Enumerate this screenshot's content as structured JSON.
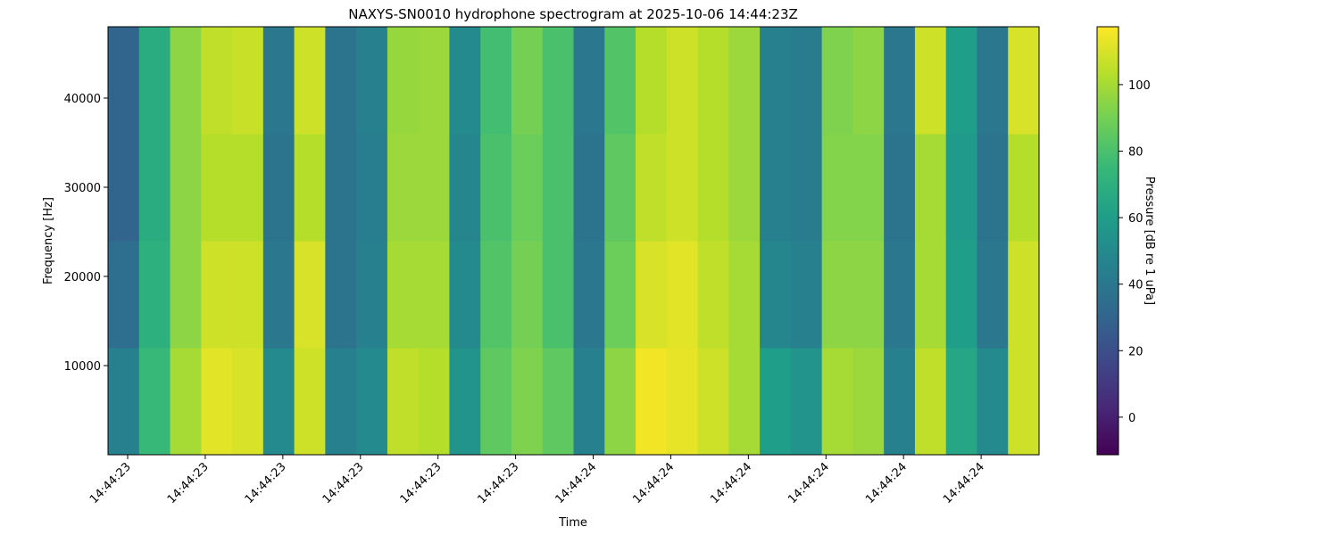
{
  "chart_data": {
    "type": "heatmap",
    "title": "NAXYS-SN0010 hydrophone spectrogram at 2025-10-06 14:44:23Z",
    "x_label": "Time",
    "y_label": "Frequency [Hz]",
    "colorbar_label": "Pressure [dB re 1 uPa]",
    "colormap": "viridis",
    "x": [
      23.112,
      23.172,
      23.232,
      23.292,
      23.352,
      23.412,
      23.472,
      23.532,
      23.592,
      23.652,
      23.712,
      23.772,
      23.832,
      23.892,
      23.952,
      24.012,
      24.072,
      24.132,
      24.192,
      24.252,
      24.312,
      24.372,
      24.432,
      24.492,
      24.552,
      24.612,
      24.672,
      24.732,
      24.792,
      24.852,
      24.912
    ],
    "y": [
      0,
      12000,
      24000,
      36000,
      48000
    ],
    "z": [
      [
        45,
        75,
        100,
        112,
        110,
        50,
        108,
        45,
        50,
        105,
        103,
        55,
        85,
        92,
        85,
        45,
        95,
        115,
        113,
        108,
        100,
        60,
        55,
        100,
        98,
        45,
        105,
        65,
        50,
        108
      ],
      [
        35,
        70,
        95,
        108,
        108,
        40,
        110,
        38,
        45,
        100,
        100,
        50,
        82,
        90,
        80,
        40,
        88,
        110,
        112,
        105,
        100,
        48,
        45,
        95,
        95,
        40,
        100,
        60,
        40,
        108
      ],
      [
        30,
        68,
        95,
        103,
        103,
        38,
        103,
        38,
        43,
        98,
        98,
        48,
        80,
        88,
        80,
        38,
        85,
        105,
        108,
        103,
        98,
        45,
        42,
        93,
        93,
        38,
        100,
        58,
        38,
        103
      ],
      [
        30,
        68,
        95,
        105,
        107,
        40,
        108,
        38,
        45,
        97,
        98,
        50,
        78,
        90,
        80,
        40,
        82,
        103,
        108,
        103,
        98,
        45,
        42,
        92,
        95,
        40,
        108,
        60,
        40,
        110
      ]
    ],
    "xlim": [
      23.112,
      24.912
    ],
    "ylim": [
      0,
      48000
    ],
    "clim": [
      -11.3,
      117.4
    ],
    "xticks": [
      {
        "value": 23.15,
        "label": "14:44:23"
      },
      {
        "value": 23.3,
        "label": "14:44:23"
      },
      {
        "value": 23.45,
        "label": "14:44:23"
      },
      {
        "value": 23.6,
        "label": "14:44:23"
      },
      {
        "value": 23.75,
        "label": "14:44:23"
      },
      {
        "value": 23.9,
        "label": "14:44:23"
      },
      {
        "value": 24.05,
        "label": "14:44:24"
      },
      {
        "value": 24.2,
        "label": "14:44:24"
      },
      {
        "value": 24.35,
        "label": "14:44:24"
      },
      {
        "value": 24.5,
        "label": "14:44:24"
      },
      {
        "value": 24.65,
        "label": "14:44:24"
      },
      {
        "value": 24.8,
        "label": "14:44:24"
      }
    ],
    "yticks": [
      10000,
      20000,
      30000,
      40000
    ],
    "cticks": [
      0,
      20,
      40,
      60,
      80,
      100
    ]
  }
}
